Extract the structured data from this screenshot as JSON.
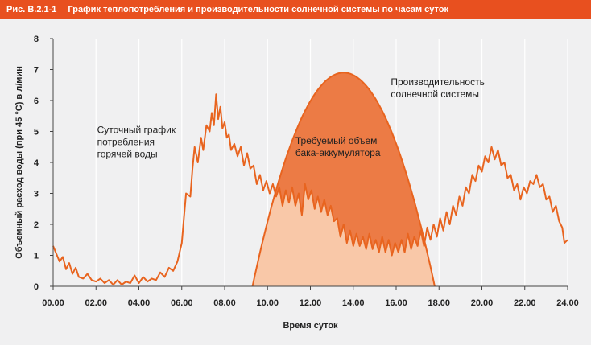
{
  "header": {
    "figure_number": "Рис. B.2.1-1",
    "figure_title": "График теплопотребления и производительности солнечной системы по часам суток"
  },
  "colors": {
    "header_bg": "#e8501f",
    "line": "#e8641f",
    "solar_fill": "#f39c6b",
    "storage_fill": "#ec7b45",
    "light_fill": "#f9c8a8",
    "plot_bg": "#f0f0f1"
  },
  "chart_data": {
    "type": "line",
    "xlabel": "Время суток",
    "ylabel": "Объемный расход воды (при 45 °C) в л/мин",
    "xlim": [
      0,
      24
    ],
    "ylim": [
      0,
      8
    ],
    "x_ticks": [
      "00.00",
      "02.00",
      "04.00",
      "06.00",
      "08.00",
      "10.00",
      "12.00",
      "14.00",
      "16.00",
      "18.00",
      "20.00",
      "22.00",
      "24.00"
    ],
    "y_ticks": [
      "0",
      "1",
      "2",
      "3",
      "4",
      "5",
      "6",
      "7",
      "8"
    ],
    "grid": "vertical",
    "series": [
      {
        "name": "Суточный график потребления горячей воды",
        "kind": "line",
        "points": [
          [
            0.0,
            1.3
          ],
          [
            0.15,
            1.05
          ],
          [
            0.3,
            0.8
          ],
          [
            0.45,
            0.95
          ],
          [
            0.6,
            0.55
          ],
          [
            0.75,
            0.75
          ],
          [
            0.9,
            0.4
          ],
          [
            1.05,
            0.6
          ],
          [
            1.2,
            0.3
          ],
          [
            1.4,
            0.25
          ],
          [
            1.6,
            0.4
          ],
          [
            1.8,
            0.2
          ],
          [
            2.0,
            0.15
          ],
          [
            2.2,
            0.25
          ],
          [
            2.4,
            0.1
          ],
          [
            2.6,
            0.2
          ],
          [
            2.8,
            0.05
          ],
          [
            3.0,
            0.2
          ],
          [
            3.2,
            0.05
          ],
          [
            3.4,
            0.15
          ],
          [
            3.6,
            0.1
          ],
          [
            3.8,
            0.35
          ],
          [
            4.0,
            0.1
          ],
          [
            4.2,
            0.3
          ],
          [
            4.4,
            0.15
          ],
          [
            4.6,
            0.25
          ],
          [
            4.8,
            0.2
          ],
          [
            5.0,
            0.45
          ],
          [
            5.2,
            0.3
          ],
          [
            5.4,
            0.6
          ],
          [
            5.6,
            0.5
          ],
          [
            5.8,
            0.8
          ],
          [
            6.0,
            1.4
          ],
          [
            6.1,
            2.2
          ],
          [
            6.2,
            3.0
          ],
          [
            6.4,
            2.9
          ],
          [
            6.5,
            3.8
          ],
          [
            6.6,
            4.5
          ],
          [
            6.75,
            4.0
          ],
          [
            6.9,
            4.8
          ],
          [
            7.0,
            4.4
          ],
          [
            7.15,
            5.2
          ],
          [
            7.3,
            5.0
          ],
          [
            7.4,
            5.6
          ],
          [
            7.5,
            5.2
          ],
          [
            7.6,
            6.2
          ],
          [
            7.7,
            5.4
          ],
          [
            7.8,
            5.8
          ],
          [
            7.9,
            5.1
          ],
          [
            8.0,
            5.3
          ],
          [
            8.1,
            4.8
          ],
          [
            8.2,
            4.9
          ],
          [
            8.3,
            4.4
          ],
          [
            8.45,
            4.6
          ],
          [
            8.6,
            4.2
          ],
          [
            8.75,
            4.5
          ],
          [
            8.9,
            3.9
          ],
          [
            9.05,
            4.3
          ],
          [
            9.2,
            3.8
          ],
          [
            9.35,
            3.9
          ],
          [
            9.5,
            3.3
          ],
          [
            9.65,
            3.6
          ],
          [
            9.8,
            3.1
          ],
          [
            9.95,
            3.4
          ],
          [
            10.1,
            3.0
          ],
          [
            10.25,
            3.3
          ],
          [
            10.4,
            2.9
          ],
          [
            10.55,
            3.2
          ],
          [
            10.7,
            2.6
          ],
          [
            10.85,
            3.1
          ],
          [
            11.0,
            2.7
          ],
          [
            11.15,
            3.2
          ],
          [
            11.3,
            2.6
          ],
          [
            11.45,
            3.0
          ],
          [
            11.6,
            2.3
          ],
          [
            11.75,
            3.3
          ],
          [
            11.9,
            2.8
          ],
          [
            12.05,
            3.1
          ],
          [
            12.2,
            2.5
          ],
          [
            12.35,
            2.9
          ],
          [
            12.5,
            2.4
          ],
          [
            12.65,
            2.8
          ],
          [
            12.8,
            2.3
          ],
          [
            12.95,
            2.6
          ],
          [
            13.1,
            2.1
          ],
          [
            13.25,
            2.2
          ],
          [
            13.4,
            1.6
          ],
          [
            13.55,
            2.0
          ],
          [
            13.7,
            1.4
          ],
          [
            13.85,
            1.8
          ],
          [
            14.0,
            1.3
          ],
          [
            14.15,
            1.7
          ],
          [
            14.3,
            1.3
          ],
          [
            14.45,
            1.6
          ],
          [
            14.6,
            1.2
          ],
          [
            14.75,
            1.7
          ],
          [
            14.9,
            1.2
          ],
          [
            15.05,
            1.5
          ],
          [
            15.2,
            1.1
          ],
          [
            15.35,
            1.6
          ],
          [
            15.5,
            1.1
          ],
          [
            15.65,
            1.5
          ],
          [
            15.8,
            1.0
          ],
          [
            15.95,
            1.4
          ],
          [
            16.1,
            1.1
          ],
          [
            16.25,
            1.5
          ],
          [
            16.4,
            1.1
          ],
          [
            16.55,
            1.7
          ],
          [
            16.7,
            1.2
          ],
          [
            16.85,
            1.6
          ],
          [
            17.0,
            1.3
          ],
          [
            17.15,
            1.8
          ],
          [
            17.3,
            1.3
          ],
          [
            17.45,
            1.9
          ],
          [
            17.6,
            1.5
          ],
          [
            17.75,
            2.0
          ],
          [
            17.9,
            1.6
          ],
          [
            18.05,
            2.2
          ],
          [
            18.2,
            1.8
          ],
          [
            18.35,
            2.4
          ],
          [
            18.5,
            2.0
          ],
          [
            18.65,
            2.6
          ],
          [
            18.8,
            2.3
          ],
          [
            18.95,
            2.9
          ],
          [
            19.1,
            2.6
          ],
          [
            19.25,
            3.2
          ],
          [
            19.4,
            3.0
          ],
          [
            19.55,
            3.6
          ],
          [
            19.7,
            3.4
          ],
          [
            19.85,
            3.9
          ],
          [
            20.0,
            3.7
          ],
          [
            20.15,
            4.2
          ],
          [
            20.3,
            4.0
          ],
          [
            20.45,
            4.5
          ],
          [
            20.6,
            4.1
          ],
          [
            20.75,
            4.4
          ],
          [
            20.9,
            3.9
          ],
          [
            21.05,
            4.0
          ],
          [
            21.2,
            3.5
          ],
          [
            21.35,
            3.6
          ],
          [
            21.5,
            3.1
          ],
          [
            21.65,
            3.3
          ],
          [
            21.8,
            2.8
          ],
          [
            21.95,
            3.2
          ],
          [
            22.1,
            3.0
          ],
          [
            22.25,
            3.4
          ],
          [
            22.4,
            3.3
          ],
          [
            22.55,
            3.6
          ],
          [
            22.7,
            3.2
          ],
          [
            22.85,
            3.3
          ],
          [
            23.0,
            2.8
          ],
          [
            23.15,
            2.9
          ],
          [
            23.3,
            2.4
          ],
          [
            23.45,
            2.6
          ],
          [
            23.6,
            2.1
          ],
          [
            23.75,
            1.9
          ],
          [
            23.85,
            1.4
          ],
          [
            24.0,
            1.5
          ]
        ]
      },
      {
        "name": "Производительность солнечной системы",
        "kind": "area",
        "x_start": 9.3,
        "x_end": 17.8,
        "peak_x": 13.55,
        "peak_y": 6.9
      }
    ],
    "annotations": [
      {
        "lines": [
          "Суточный график",
          "потребления",
          "горячей воды"
        ],
        "x": 2.05,
        "y": 4.95,
        "bold": false
      },
      {
        "lines": [
          "Требуемый объем",
          "бака-аккумулятора"
        ],
        "x": 11.3,
        "y": 4.6,
        "bold": false
      },
      {
        "lines": [
          "Производительность",
          "солнечной системы"
        ],
        "x": 15.75,
        "y": 6.5,
        "bold": false
      }
    ]
  }
}
